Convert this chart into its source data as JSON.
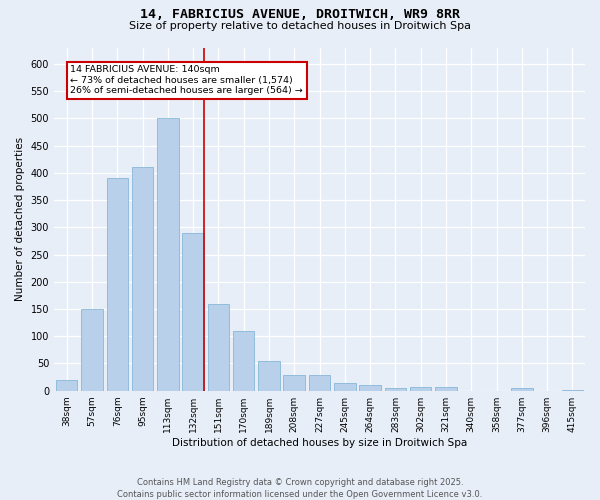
{
  "title_line1": "14, FABRICIUS AVENUE, DROITWICH, WR9 8RR",
  "title_line2": "Size of property relative to detached houses in Droitwich Spa",
  "xlabel": "Distribution of detached houses by size in Droitwich Spa",
  "ylabel": "Number of detached properties",
  "categories": [
    "38sqm",
    "57sqm",
    "76sqm",
    "95sqm",
    "113sqm",
    "132sqm",
    "151sqm",
    "170sqm",
    "189sqm",
    "208sqm",
    "227sqm",
    "245sqm",
    "264sqm",
    "283sqm",
    "302sqm",
    "321sqm",
    "340sqm",
    "358sqm",
    "377sqm",
    "396sqm",
    "415sqm"
  ],
  "values": [
    20,
    150,
    390,
    410,
    500,
    290,
    160,
    110,
    55,
    28,
    28,
    15,
    10,
    5,
    6,
    7,
    0,
    0,
    5,
    0,
    2
  ],
  "bar_color": "#b8d0ea",
  "bar_edge_color": "#7aafd4",
  "vline_x_index": 5.42,
  "vline_color": "#cc0000",
  "annotation_text": "14 FABRICIUS AVENUE: 140sqm\n← 73% of detached houses are smaller (1,574)\n26% of semi-detached houses are larger (564) →",
  "annotation_box_facecolor": "#ffffff",
  "annotation_box_edgecolor": "#cc0000",
  "ylim": [
    0,
    630
  ],
  "yticks": [
    0,
    50,
    100,
    150,
    200,
    250,
    300,
    350,
    400,
    450,
    500,
    550,
    600
  ],
  "background_color": "#e8eef8",
  "grid_color": "#ffffff",
  "footer_text": "Contains HM Land Registry data © Crown copyright and database right 2025.\nContains public sector information licensed under the Open Government Licence v3.0."
}
